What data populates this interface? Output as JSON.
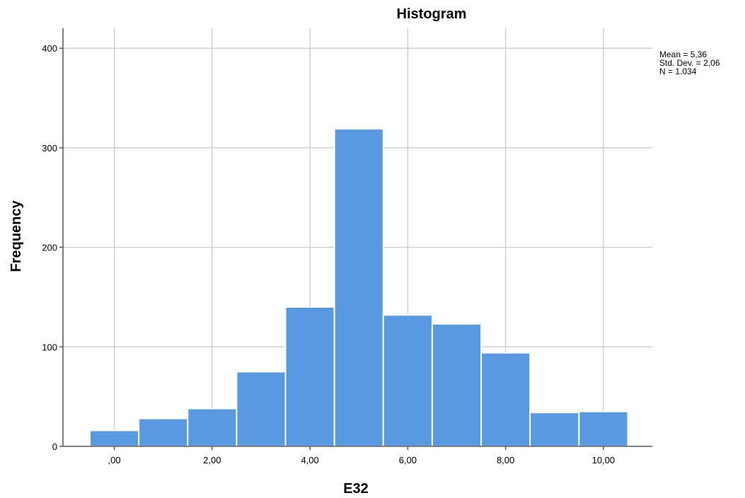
{
  "chart_data": {
    "type": "bar",
    "title": "Histogram",
    "xlabel": "E32",
    "ylabel": "Frequency",
    "bins": [
      {
        "center": 0,
        "count": 16
      },
      {
        "center": 1,
        "count": 28
      },
      {
        "center": 2,
        "count": 38
      },
      {
        "center": 3,
        "count": 75
      },
      {
        "center": 4,
        "count": 140
      },
      {
        "center": 5,
        "count": 319
      },
      {
        "center": 6,
        "count": 132
      },
      {
        "center": 7,
        "count": 123
      },
      {
        "center": 8,
        "count": 94
      },
      {
        "center": 9,
        "count": 34
      },
      {
        "center": 10,
        "count": 35
      }
    ],
    "bin_width": 1,
    "xlim": [
      -1.05,
      11
    ],
    "ylim": [
      0,
      420
    ],
    "x_ticks": [
      {
        "value": 0,
        "label": ",00"
      },
      {
        "value": 2,
        "label": "2,00"
      },
      {
        "value": 4,
        "label": "4,00"
      },
      {
        "value": 6,
        "label": "6,00"
      },
      {
        "value": 8,
        "label": "8,00"
      },
      {
        "value": 10,
        "label": "10,00"
      }
    ],
    "y_ticks": [
      {
        "value": 0,
        "label": "0"
      },
      {
        "value": 100,
        "label": "100"
      },
      {
        "value": 200,
        "label": "200"
      },
      {
        "value": 300,
        "label": "300"
      },
      {
        "value": 400,
        "label": "400"
      }
    ],
    "stats": {
      "mean": "Mean = 5,36",
      "std_dev": "Std. Dev. = 2,06",
      "n": "N = 1.034"
    },
    "bar_color": "#5899e2",
    "grid": true,
    "legend_position": "top-right"
  }
}
